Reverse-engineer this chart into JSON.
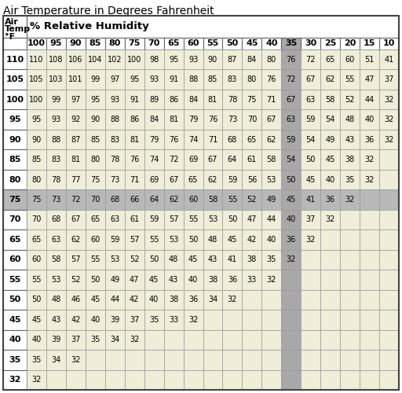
{
  "title": "Air Temperature in Degrees Fahrenheit",
  "col_header_label": "% Relative Humidity",
  "humidity_cols": [
    100,
    95,
    90,
    85,
    80,
    75,
    70,
    65,
    60,
    55,
    50,
    45,
    40,
    35,
    30,
    25,
    20,
    15,
    10
  ],
  "temp_rows": [
    110,
    105,
    100,
    95,
    90,
    85,
    80,
    75,
    70,
    65,
    60,
    55,
    50,
    45,
    40,
    35,
    32
  ],
  "table_data": [
    [
      110,
      108,
      106,
      104,
      102,
      100,
      98,
      95,
      93,
      90,
      87,
      84,
      80,
      76,
      72,
      65,
      60,
      51,
      41
    ],
    [
      105,
      103,
      101,
      99,
      97,
      95,
      93,
      91,
      88,
      85,
      83,
      80,
      76,
      72,
      67,
      62,
      55,
      47,
      37
    ],
    [
      100,
      99,
      97,
      95,
      93,
      91,
      89,
      86,
      84,
      81,
      78,
      75,
      71,
      67,
      63,
      58,
      52,
      44,
      32
    ],
    [
      95,
      93,
      92,
      90,
      88,
      86,
      84,
      81,
      79,
      76,
      73,
      70,
      67,
      63,
      59,
      54,
      48,
      40,
      32
    ],
    [
      90,
      88,
      87,
      85,
      83,
      81,
      79,
      76,
      74,
      71,
      68,
      65,
      62,
      59,
      54,
      49,
      43,
      36,
      32
    ],
    [
      85,
      83,
      81,
      80,
      78,
      76,
      74,
      72,
      69,
      67,
      64,
      61,
      58,
      54,
      50,
      45,
      38,
      32,
      null
    ],
    [
      80,
      78,
      77,
      75,
      73,
      71,
      69,
      67,
      65,
      62,
      59,
      56,
      53,
      50,
      45,
      40,
      35,
      32,
      null
    ],
    [
      75,
      73,
      72,
      70,
      68,
      66,
      64,
      62,
      60,
      58,
      55,
      52,
      49,
      45,
      41,
      36,
      32,
      null,
      null
    ],
    [
      70,
      68,
      67,
      65,
      63,
      61,
      59,
      57,
      55,
      53,
      50,
      47,
      44,
      40,
      37,
      32,
      null,
      null,
      null
    ],
    [
      65,
      63,
      62,
      60,
      59,
      57,
      55,
      53,
      50,
      48,
      45,
      42,
      40,
      36,
      32,
      null,
      null,
      null,
      null
    ],
    [
      60,
      58,
      57,
      55,
      53,
      52,
      50,
      48,
      45,
      43,
      41,
      38,
      35,
      32,
      null,
      null,
      null,
      null,
      null
    ],
    [
      55,
      53,
      52,
      50,
      49,
      47,
      45,
      43,
      40,
      38,
      36,
      33,
      32,
      null,
      null,
      null,
      null,
      null,
      null
    ],
    [
      50,
      48,
      46,
      45,
      44,
      42,
      40,
      38,
      36,
      34,
      32,
      null,
      null,
      null,
      null,
      null,
      null,
      null,
      null
    ],
    [
      45,
      43,
      42,
      40,
      39,
      37,
      35,
      33,
      32,
      null,
      null,
      null,
      null,
      null,
      null,
      null,
      null,
      null,
      null
    ],
    [
      40,
      39,
      37,
      35,
      34,
      32,
      null,
      null,
      null,
      null,
      null,
      null,
      null,
      null,
      null,
      null,
      null,
      null,
      null
    ],
    [
      35,
      34,
      32,
      null,
      null,
      null,
      null,
      null,
      null,
      null,
      null,
      null,
      null,
      null,
      null,
      null,
      null,
      null,
      null
    ],
    [
      32,
      null,
      null,
      null,
      null,
      null,
      null,
      null,
      null,
      null,
      null,
      null,
      null,
      null,
      null,
      null,
      null,
      null,
      null
    ]
  ],
  "highlight_col_idx": 13,
  "highlight_row_idx": 7,
  "data_bg_color": "#f0edd8",
  "empty_bg_color": "#f0edd8",
  "highlight_col_color": "#a8a8a8",
  "highlight_row_color": "#b8b8b8",
  "header_bg": "#ffffff",
  "border_color": "#999999",
  "title_fontsize": 10,
  "cell_fontsize": 7.0,
  "header_fontsize": 8.0,
  "hdr1_fontsize": 9.5
}
